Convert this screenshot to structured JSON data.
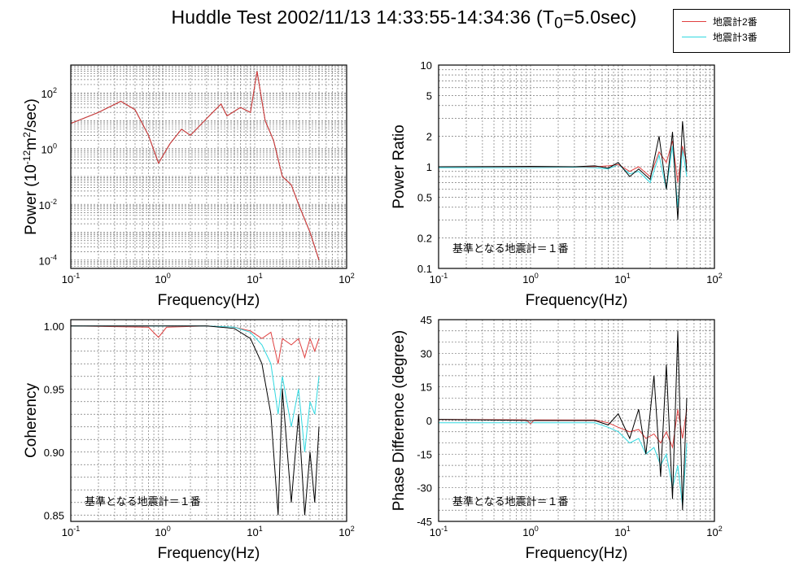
{
  "header": {
    "title_prefix": "Huddle Test  2002/11/13  14:33:55-14:34:36 (T",
    "title_sub": "0",
    "title_suffix": "=5.0sec)"
  },
  "legend": {
    "items": [
      {
        "label": "地震計2番",
        "color": "#e04040"
      },
      {
        "label": "地震計3番",
        "color": "#30d8e0"
      }
    ]
  },
  "chart_data": [
    {
      "type": "line",
      "title": "",
      "xlabel": "Frequency(Hz)",
      "ylabel_parts": {
        "a": "Power (10",
        "b": "-12",
        "c": "m",
        "d": "2",
        "e": "/sec)"
      },
      "xscale": "log",
      "yscale": "log",
      "xlim": [
        0.1,
        100
      ],
      "ylim": [
        5e-05,
        1000
      ],
      "x_tick_labels": [
        {
          "b": "10",
          "e": "-1"
        },
        {
          "b": "10",
          "e": "0"
        },
        {
          "b": "10",
          "e": "1"
        },
        {
          "b": "10",
          "e": "2"
        }
      ],
      "y_tick_labels": [
        {
          "b": "10",
          "e": "-4"
        },
        {
          "b": "10",
          "e": "-2"
        },
        {
          "b": "10",
          "e": "0"
        },
        {
          "b": "10",
          "e": "2"
        }
      ],
      "series": [
        {
          "color": "#000000",
          "x": [
            0.1,
            0.2,
            0.35,
            0.5,
            0.7,
            0.9,
            1.2,
            1.6,
            2.0,
            3.0,
            4.3,
            5.0,
            7.0,
            9.0,
            10.6,
            13.0,
            16.0,
            20.0,
            25.0,
            30.0,
            40.0,
            50.0
          ],
          "y": [
            8.0,
            20.0,
            50.0,
            25.0,
            3.0,
            0.3,
            1.5,
            5.0,
            3.0,
            12.0,
            40.0,
            15.0,
            30.0,
            20.0,
            600.0,
            10.0,
            2.0,
            0.1,
            0.05,
            0.01,
            0.001,
            0.0001
          ]
        },
        {
          "color": "#e04040",
          "x": [
            0.1,
            0.2,
            0.35,
            0.5,
            0.7,
            0.9,
            1.2,
            1.6,
            2.0,
            3.0,
            4.3,
            5.0,
            7.0,
            9.0,
            10.6,
            13.0,
            16.0,
            20.0,
            25.0,
            30.0,
            40.0,
            50.0
          ],
          "y": [
            8.0,
            20.0,
            50.0,
            25.0,
            3.0,
            0.3,
            1.5,
            5.0,
            3.0,
            12.0,
            40.0,
            15.0,
            30.0,
            20.0,
            600.0,
            10.0,
            2.0,
            0.1,
            0.05,
            0.01,
            0.001,
            0.0001
          ]
        }
      ]
    },
    {
      "type": "line",
      "title": "",
      "xlabel": "Frequency(Hz)",
      "ylabel": "Power Ratio",
      "annotation": "基準となる地震計＝１番",
      "xscale": "log",
      "yscale": "log",
      "xlim": [
        0.1,
        100
      ],
      "ylim": [
        0.1,
        10
      ],
      "x_tick_labels": [
        {
          "b": "10",
          "e": "-1"
        },
        {
          "b": "10",
          "e": "0"
        },
        {
          "b": "10",
          "e": "1"
        },
        {
          "b": "10",
          "e": "2"
        }
      ],
      "y_ticks": [
        0.1,
        0.2,
        0.5,
        1,
        2,
        5,
        10
      ],
      "y_tick_labels": [
        "0.1",
        "0.2",
        "0.5",
        "1",
        "2",
        "5",
        "10"
      ],
      "series": [
        {
          "color": "#30d8e0",
          "x": [
            0.1,
            1,
            3,
            5,
            7,
            9,
            12,
            15,
            20,
            25,
            30,
            35,
            40,
            45,
            50
          ],
          "y": [
            0.98,
            0.98,
            0.99,
            0.98,
            0.95,
            1.05,
            0.85,
            0.9,
            0.7,
            1.3,
            0.6,
            1.6,
            0.4,
            1.5,
            0.8
          ]
        },
        {
          "color": "#e04040",
          "x": [
            0.1,
            1,
            3,
            5,
            7,
            9,
            12,
            15,
            20,
            25,
            30,
            35,
            40,
            45,
            50
          ],
          "y": [
            1.0,
            1.0,
            1.0,
            1.0,
            1.02,
            1.05,
            0.9,
            1.0,
            0.8,
            1.4,
            1.1,
            1.8,
            0.7,
            1.6,
            1.1
          ]
        },
        {
          "color": "#000000",
          "x": [
            0.1,
            1,
            3,
            5,
            7,
            9,
            12,
            15,
            20,
            25,
            30,
            35,
            40,
            45,
            50
          ],
          "y": [
            1.0,
            1.01,
            1.0,
            1.02,
            0.97,
            1.1,
            0.8,
            0.95,
            0.75,
            2.0,
            0.6,
            2.2,
            0.3,
            2.8,
            0.9
          ]
        }
      ]
    },
    {
      "type": "line",
      "title": "",
      "xlabel": "Frequency(Hz)",
      "ylabel": "Coherency",
      "annotation": "基準となる地震計＝１番",
      "xscale": "log",
      "yscale": "linear",
      "xlim": [
        0.1,
        100
      ],
      "ylim": [
        0.845,
        1.005
      ],
      "x_tick_labels": [
        {
          "b": "10",
          "e": "-1"
        },
        {
          "b": "10",
          "e": "0"
        },
        {
          "b": "10",
          "e": "1"
        },
        {
          "b": "10",
          "e": "2"
        }
      ],
      "y_ticks": [
        0.85,
        0.9,
        0.95,
        1.0
      ],
      "y_tick_labels": [
        "0.85",
        "0.90",
        "0.95",
        "1.00"
      ],
      "series": [
        {
          "color": "#e04040",
          "x": [
            0.1,
            0.7,
            0.9,
            1.1,
            3,
            6,
            9,
            12,
            15,
            18,
            20,
            25,
            30,
            35,
            40,
            45,
            50
          ],
          "y": [
            1.0,
            0.999,
            0.991,
            0.999,
            1.0,
            0.999,
            0.996,
            0.99,
            0.995,
            0.97,
            0.99,
            0.985,
            0.99,
            0.975,
            0.99,
            0.98,
            0.99
          ]
        },
        {
          "color": "#30d8e0",
          "x": [
            0.1,
            3,
            6,
            9,
            12,
            15,
            18,
            20,
            25,
            30,
            35,
            40,
            45,
            50
          ],
          "y": [
            1.0,
            1.0,
            0.999,
            0.995,
            0.985,
            0.97,
            0.93,
            0.96,
            0.92,
            0.95,
            0.9,
            0.94,
            0.93,
            0.96
          ]
        },
        {
          "color": "#000000",
          "x": [
            0.1,
            3,
            6,
            9,
            12,
            15,
            18,
            20,
            25,
            30,
            35,
            40,
            45,
            50
          ],
          "y": [
            1.0,
            1.0,
            0.998,
            0.99,
            0.97,
            0.93,
            0.85,
            0.95,
            0.86,
            0.93,
            0.85,
            0.9,
            0.86,
            0.92
          ]
        }
      ]
    },
    {
      "type": "line",
      "title": "",
      "xlabel": "Frequency(Hz)",
      "ylabel": "Phase Difference (degree)",
      "annotation": "基準となる地震計＝１番",
      "xscale": "log",
      "yscale": "linear",
      "xlim": [
        0.1,
        100
      ],
      "ylim": [
        -45,
        45
      ],
      "x_tick_labels": [
        {
          "b": "10",
          "e": "-1"
        },
        {
          "b": "10",
          "e": "0"
        },
        {
          "b": "10",
          "e": "1"
        },
        {
          "b": "10",
          "e": "2"
        }
      ],
      "y_ticks": [
        -45,
        -30,
        -15,
        0,
        15,
        30,
        45
      ],
      "y_tick_labels": [
        "-45",
        "-30",
        "-15",
        "0",
        "15",
        "30",
        "45"
      ],
      "series": [
        {
          "color": "#30d8e0",
          "x": [
            0.1,
            1,
            3,
            5,
            7,
            9,
            12,
            15,
            18,
            22,
            26,
            30,
            35,
            40,
            45,
            50
          ],
          "y": [
            -1,
            -1,
            -1,
            -1,
            -3,
            -5,
            -10,
            -8,
            -15,
            -12,
            -20,
            -15,
            -30,
            -20,
            -38,
            -10
          ]
        },
        {
          "color": "#e04040",
          "x": [
            0.1,
            0.9,
            1.0,
            1.1,
            3,
            5,
            7,
            9,
            12,
            15,
            18,
            22,
            26,
            30,
            35,
            40,
            45,
            50
          ],
          "y": [
            0.5,
            0.3,
            -1.5,
            0.3,
            0.2,
            0.2,
            -1,
            -3,
            -5,
            -4,
            -8,
            -6,
            -10,
            -5,
            -12,
            5,
            -8,
            5
          ]
        },
        {
          "color": "#000000",
          "x": [
            0.1,
            1,
            3,
            5,
            7,
            9,
            12,
            15,
            18,
            22,
            26,
            30,
            35,
            40,
            45,
            50
          ],
          "y": [
            0.5,
            0,
            0,
            0,
            -2,
            3,
            -8,
            5,
            -15,
            20,
            -25,
            25,
            -35,
            40,
            -40,
            10
          ]
        }
      ]
    }
  ]
}
